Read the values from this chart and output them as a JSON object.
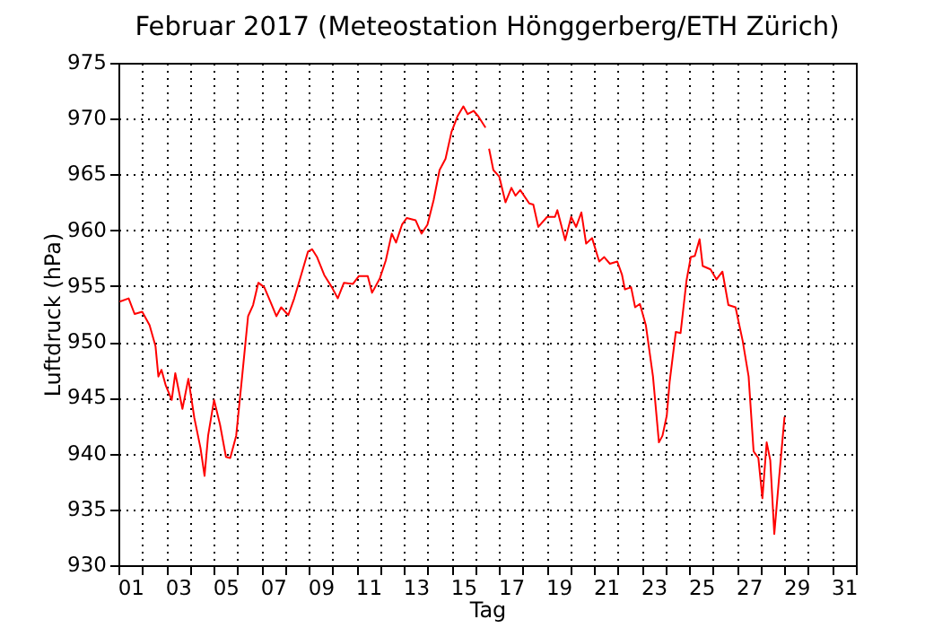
{
  "chart_data": {
    "type": "line",
    "title": "Februar 2017  (Meteostation Hönggerberg/ETH Zürich)",
    "xlabel": "Tag",
    "ylabel": "Luftdruck (hPa)",
    "x": [
      1.05,
      1.43,
      1.68,
      2.0,
      2.31,
      2.56,
      2.68,
      2.81,
      2.99,
      3.24,
      3.39,
      3.69,
      3.94,
      4.19,
      4.45,
      4.62,
      4.77,
      5.02,
      5.27,
      5.52,
      5.7,
      5.95,
      6.2,
      6.45,
      6.66,
      6.88,
      7.13,
      7.39,
      7.64,
      7.84,
      8.14,
      8.39,
      8.64,
      8.97,
      9.14,
      9.35,
      9.65,
      9.97,
      10.22,
      10.48,
      10.86,
      11.11,
      11.48,
      11.66,
      11.99,
      12.24,
      12.49,
      12.67,
      12.92,
      13.12,
      13.49,
      13.74,
      13.99,
      14.25,
      14.5,
      14.75,
      15.0,
      15.25,
      15.5,
      15.68,
      15.93,
      16.13,
      16.43,
      16.5,
      16.58,
      16.76,
      17.01,
      17.27,
      17.52,
      17.69,
      17.89,
      18.27,
      18.44,
      18.65,
      19.02,
      19.35,
      19.45,
      19.78,
      20.03,
      20.24,
      20.46,
      20.66,
      20.91,
      21.21,
      21.42,
      21.66,
      21.97,
      22.17,
      22.29,
      22.55,
      22.72,
      22.92,
      23.17,
      23.47,
      23.72,
      23.87,
      24.05,
      24.17,
      24.43,
      24.63,
      24.88,
      25.06,
      25.23,
      25.43,
      25.56,
      25.89,
      26.14,
      26.39,
      26.64,
      26.94,
      27.24,
      27.49,
      27.7,
      27.9,
      28.07,
      28.25,
      28.4,
      28.57,
      28.75,
      29.0
    ],
    "values": [
      953.6,
      953.9,
      952.5,
      952.7,
      951.5,
      949.6,
      946.9,
      947.5,
      946.1,
      944.8,
      947.2,
      944.0,
      946.7,
      943.2,
      940.5,
      938.0,
      941.6,
      944.8,
      942.6,
      939.7,
      939.6,
      941.6,
      946.9,
      952.3,
      953.3,
      955.3,
      954.9,
      953.6,
      952.3,
      953.1,
      952.4,
      953.9,
      955.7,
      958.1,
      958.3,
      957.6,
      956.0,
      954.9,
      953.9,
      955.3,
      955.2,
      955.9,
      955.9,
      954.4,
      955.7,
      957.3,
      959.7,
      958.9,
      960.5,
      961.1,
      960.9,
      959.7,
      960.5,
      962.7,
      965.4,
      966.4,
      968.8,
      970.2,
      971.1,
      970.4,
      970.7,
      970.2,
      969.2,
      null,
      967.3,
      965.4,
      964.8,
      962.5,
      963.8,
      963.1,
      963.6,
      962.4,
      962.3,
      960.3,
      961.2,
      961.2,
      961.8,
      959.1,
      961.2,
      960.3,
      961.6,
      958.8,
      959.3,
      957.2,
      957.6,
      957.0,
      957.2,
      956.0,
      954.7,
      954.9,
      953.1,
      953.4,
      951.5,
      946.9,
      941.0,
      941.6,
      943.4,
      946.4,
      950.9,
      950.8,
      955.5,
      957.6,
      957.7,
      959.2,
      956.8,
      956.5,
      955.6,
      956.3,
      953.3,
      953.1,
      950.1,
      946.9,
      940.2,
      939.6,
      936.0,
      941.0,
      939.4,
      932.8,
      937.3,
      943.3
    ],
    "color": "#ff0000",
    "xlim": [
      1,
      32
    ],
    "xticks": [
      {
        "value": 1,
        "label": null
      },
      {
        "value": 1.5,
        "label": "01"
      },
      {
        "value": 2,
        "label": null
      },
      {
        "value": 3,
        "label": null
      },
      {
        "value": 3.5,
        "label": "03"
      },
      {
        "value": 4,
        "label": null
      },
      {
        "value": 5,
        "label": null
      },
      {
        "value": 5.5,
        "label": "05"
      },
      {
        "value": 6,
        "label": null
      },
      {
        "value": 7,
        "label": null
      },
      {
        "value": 7.5,
        "label": "07"
      },
      {
        "value": 8,
        "label": null
      },
      {
        "value": 9,
        "label": null
      },
      {
        "value": 9.5,
        "label": "09"
      },
      {
        "value": 10,
        "label": null
      },
      {
        "value": 11,
        "label": null
      },
      {
        "value": 11.5,
        "label": "11"
      },
      {
        "value": 12,
        "label": null
      },
      {
        "value": 13,
        "label": null
      },
      {
        "value": 13.5,
        "label": "13"
      },
      {
        "value": 14,
        "label": null
      },
      {
        "value": 15,
        "label": null
      },
      {
        "value": 15.5,
        "label": "15"
      },
      {
        "value": 16,
        "label": null
      },
      {
        "value": 17,
        "label": null
      },
      {
        "value": 17.5,
        "label": "17"
      },
      {
        "value": 18,
        "label": null
      },
      {
        "value": 19,
        "label": null
      },
      {
        "value": 19.5,
        "label": "19"
      },
      {
        "value": 20,
        "label": null
      },
      {
        "value": 21,
        "label": null
      },
      {
        "value": 21.5,
        "label": "21"
      },
      {
        "value": 22,
        "label": null
      },
      {
        "value": 23,
        "label": null
      },
      {
        "value": 23.5,
        "label": "23"
      },
      {
        "value": 24,
        "label": null
      },
      {
        "value": 25,
        "label": null
      },
      {
        "value": 25.5,
        "label": "25"
      },
      {
        "value": 26,
        "label": null
      },
      {
        "value": 27,
        "label": null
      },
      {
        "value": 27.5,
        "label": "27"
      },
      {
        "value": 28,
        "label": null
      },
      {
        "value": 29,
        "label": null
      },
      {
        "value": 29.5,
        "label": "29"
      },
      {
        "value": 30,
        "label": null
      },
      {
        "value": 31,
        "label": null
      },
      {
        "value": 31.5,
        "label": "31"
      },
      {
        "value": 32,
        "label": null
      }
    ],
    "ylim": [
      930,
      975
    ],
    "yticks": [
      930,
      935,
      940,
      945,
      950,
      955,
      960,
      965,
      970,
      975
    ],
    "grid": true
  }
}
